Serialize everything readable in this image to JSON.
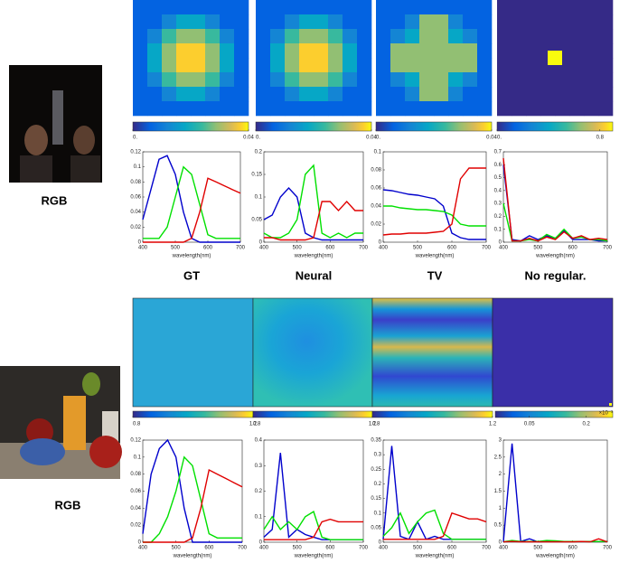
{
  "wavelengths": [
    400,
    425,
    450,
    475,
    500,
    525,
    550,
    575,
    600,
    625,
    650,
    675,
    700
  ],
  "rows": [
    {
      "photo_label": "RGB",
      "titles": [
        "GT",
        "Neural",
        "TV",
        "No regular."
      ],
      "colorbars": [
        {
          "lim": [
            0,
            0.04
          ],
          "ticks": [
            {
              "value": 0,
              "label": "0."
            },
            0.04
          ]
        },
        {
          "lim": [
            0,
            0.04
          ],
          "ticks": [
            {
              "value": 0,
              "label": "0."
            },
            0.04
          ]
        },
        {
          "lim": [
            0,
            0.04
          ],
          "ticks": [
            {
              "value": 0,
              "label": "0."
            },
            0.04
          ]
        },
        {
          "lim": [
            0,
            0.9
          ],
          "ticks": [
            {
              "value": 0,
              "label": "0."
            },
            0.8
          ]
        }
      ],
      "plots": [
        {
          "xlabel": "wavelength(nm)",
          "xlim": [
            400,
            700
          ],
          "xticks": [
            400,
            500,
            600,
            700
          ],
          "ylim": [
            0,
            0.12
          ],
          "yticks": [
            0,
            0.02,
            0.04,
            0.06,
            0.08,
            0.1,
            0.12
          ],
          "series": [
            {
              "color": "#0000cc",
              "values": [
                0.03,
                0.07,
                0.11,
                0.115,
                0.09,
                0.04,
                0.005,
                0,
                0,
                0,
                0,
                0,
                0
              ]
            },
            {
              "color": "#00e000",
              "values": [
                0.005,
                0.005,
                0.005,
                0.02,
                0.06,
                0.1,
                0.09,
                0.05,
                0.01,
                0.005,
                0.005,
                0.005,
                0.005
              ]
            },
            {
              "color": "#e00000",
              "values": [
                0,
                0,
                0,
                0,
                0,
                0,
                0.005,
                0.04,
                0.085,
                0.08,
                0.075,
                0.07,
                0.065
              ]
            }
          ]
        },
        {
          "xlabel": "wavelength(nm)",
          "xlim": [
            400,
            700
          ],
          "xticks": [
            400,
            500,
            600,
            700
          ],
          "ylim": [
            0,
            0.2
          ],
          "yticks": [
            0,
            0.05,
            0.1,
            0.15,
            0.2
          ],
          "series": [
            {
              "color": "#0000cc",
              "values": [
                0.05,
                0.06,
                0.1,
                0.12,
                0.1,
                0.02,
                0.01,
                0.005,
                0.005,
                0.005,
                0.005,
                0.005,
                0.005
              ]
            },
            {
              "color": "#00e000",
              "values": [
                0.02,
                0.01,
                0.01,
                0.02,
                0.05,
                0.15,
                0.17,
                0.02,
                0.01,
                0.02,
                0.01,
                0.02,
                0.02
              ]
            },
            {
              "color": "#e00000",
              "values": [
                0.01,
                0.01,
                0.005,
                0.005,
                0.005,
                0.005,
                0.01,
                0.09,
                0.09,
                0.07,
                0.09,
                0.07,
                0.07
              ]
            }
          ]
        },
        {
          "xlabel": "wavelength(nm)",
          "xlim": [
            400,
            700
          ],
          "xticks": [
            400,
            500,
            600,
            700
          ],
          "ylim": [
            0,
            0.1
          ],
          "yticks": [
            0,
            0.02,
            0.04,
            0.06,
            0.08,
            0.1
          ],
          "series": [
            {
              "color": "#0000cc",
              "values": [
                0.058,
                0.057,
                0.055,
                0.053,
                0.052,
                0.05,
                0.048,
                0.04,
                0.01,
                0.005,
                0.003,
                0.003,
                0.003
              ]
            },
            {
              "color": "#00e000",
              "values": [
                0.04,
                0.04,
                0.038,
                0.037,
                0.036,
                0.036,
                0.035,
                0.034,
                0.03,
                0.02,
                0.018,
                0.018,
                0.018
              ]
            },
            {
              "color": "#e00000",
              "values": [
                0.008,
                0.009,
                0.009,
                0.01,
                0.01,
                0.01,
                0.011,
                0.012,
                0.02,
                0.07,
                0.082,
                0.082,
                0.082
              ]
            }
          ]
        },
        {
          "xlabel": "wavelength(nm)",
          "xlim": [
            400,
            700
          ],
          "xticks": [
            400,
            500,
            600,
            700
          ],
          "ylim": [
            0,
            0.7
          ],
          "yticks": [
            0,
            0.1,
            0.2,
            0.3,
            0.4,
            0.5,
            0.6,
            0.7
          ],
          "series": [
            {
              "color": "#0000cc",
              "values": [
                0.6,
                0.02,
                0.01,
                0.05,
                0.02,
                0.05,
                0.03,
                0.09,
                0.02,
                0.02,
                0.02,
                0.01,
                0.01
              ]
            },
            {
              "color": "#00e000",
              "values": [
                0.3,
                0.01,
                0.01,
                0.02,
                0.01,
                0.06,
                0.03,
                0.1,
                0.03,
                0.04,
                0.02,
                0.02,
                0.01
              ]
            },
            {
              "color": "#e00000",
              "values": [
                0.65,
                0.01,
                0.01,
                0.03,
                0.01,
                0.04,
                0.02,
                0.08,
                0.03,
                0.05,
                0.02,
                0.03,
                0.02
              ]
            }
          ]
        }
      ]
    },
    {
      "photo_label": "RGB",
      "colorbars": [
        {
          "lim": [
            0.8,
            1.2
          ],
          "ticks": [
            0.8,
            1.2
          ]
        },
        {
          "lim": [
            0.8,
            1.2
          ],
          "ticks": [
            0.8,
            1.2
          ]
        },
        {
          "lim": [
            0.8,
            1.2
          ],
          "ticks": [
            0.8,
            1.2
          ]
        },
        {
          "lim": [
            -0.04,
            0.27
          ],
          "ticks": [
            0.05,
            0.2
          ],
          "exponent": "×10⁻³"
        }
      ],
      "plots": [
        {
          "xlabel": "wavelength(nm)",
          "xlim": [
            400,
            700
          ],
          "xticks": [
            400,
            500,
            600,
            700
          ],
          "ylim": [
            0,
            0.12
          ],
          "yticks": [
            0,
            0.02,
            0.04,
            0.06,
            0.08,
            0.1,
            0.12
          ],
          "series": [
            {
              "color": "#0000cc",
              "values": [
                0.01,
                0.08,
                0.11,
                0.12,
                0.1,
                0.04,
                0,
                0,
                0,
                0,
                0,
                0,
                0
              ]
            },
            {
              "color": "#00e000",
              "values": [
                0,
                0,
                0.01,
                0.03,
                0.06,
                0.1,
                0.09,
                0.05,
                0.01,
                0.005,
                0.005,
                0.005,
                0.005
              ]
            },
            {
              "color": "#e00000",
              "values": [
                0,
                0,
                0,
                0,
                0,
                0,
                0.005,
                0.04,
                0.085,
                0.08,
                0.075,
                0.07,
                0.065
              ]
            }
          ]
        },
        {
          "xlabel": "wavelength(nm)",
          "xlim": [
            400,
            700
          ],
          "xticks": [
            400,
            500,
            600,
            700
          ],
          "ylim": [
            0,
            0.4
          ],
          "yticks": [
            0,
            0.1,
            0.2,
            0.3,
            0.4
          ],
          "series": [
            {
              "color": "#0000cc",
              "values": [
                0.02,
                0.05,
                0.35,
                0.02,
                0.05,
                0.03,
                0.02,
                0.01,
                0.01,
                0.01,
                0.01,
                0.01,
                0.01
              ]
            },
            {
              "color": "#00e000",
              "values": [
                0.05,
                0.1,
                0.05,
                0.08,
                0.05,
                0.1,
                0.12,
                0.02,
                0.01,
                0.01,
                0.01,
                0.01,
                0.01
              ]
            },
            {
              "color": "#e00000",
              "values": [
                0.01,
                0.01,
                0.01,
                0.01,
                0.01,
                0.01,
                0.02,
                0.08,
                0.09,
                0.08,
                0.08,
                0.08,
                0.08
              ]
            }
          ]
        },
        {
          "xlabel": "wavelength(nm)",
          "xlim": [
            400,
            700
          ],
          "xticks": [
            400,
            500,
            600,
            700
          ],
          "ylim": [
            0,
            0.35
          ],
          "yticks": [
            0,
            0.05,
            0.1,
            0.15,
            0.2,
            0.25,
            0.3,
            0.35
          ],
          "series": [
            {
              "color": "#0000cc",
              "values": [
                0.01,
                0.33,
                0.02,
                0.01,
                0.07,
                0.01,
                0.02,
                0.01,
                0.01,
                0.01,
                0.01,
                0.01,
                0.01
              ]
            },
            {
              "color": "#00e000",
              "values": [
                0.02,
                0.05,
                0.1,
                0.03,
                0.07,
                0.1,
                0.11,
                0.03,
                0.01,
                0.01,
                0.01,
                0.01,
                0.01
              ]
            },
            {
              "color": "#e00000",
              "values": [
                0.01,
                0.01,
                0.01,
                0.01,
                0.01,
                0.01,
                0.01,
                0.02,
                0.1,
                0.09,
                0.08,
                0.08,
                0.07
              ]
            }
          ]
        },
        {
          "xlabel": "wavelength(nm)",
          "xlim": [
            400,
            700
          ],
          "xticks": [
            400,
            500,
            600,
            700
          ],
          "ylim": [
            0,
            3
          ],
          "yticks": [
            0,
            0.5,
            1,
            1.5,
            2,
            2.5,
            3
          ],
          "series": [
            {
              "color": "#0000cc",
              "values": [
                0.01,
                2.9,
                0.02,
                0.1,
                0.01,
                0.02,
                0.02,
                0.02,
                0.02,
                0.02,
                0.02,
                0.02,
                0.02
              ]
            },
            {
              "color": "#00e000",
              "values": [
                0.01,
                0.05,
                0.02,
                0.02,
                0.02,
                0.05,
                0.04,
                0.02,
                0.02,
                0.02,
                0.02,
                0.02,
                0.02
              ]
            },
            {
              "color": "#e00000",
              "values": [
                0.01,
                0.02,
                0.01,
                0.01,
                0.01,
                0.01,
                0.01,
                0.01,
                0.01,
                0.02,
                0.01,
                0.1,
                0.01
              ]
            }
          ]
        }
      ]
    }
  ]
}
